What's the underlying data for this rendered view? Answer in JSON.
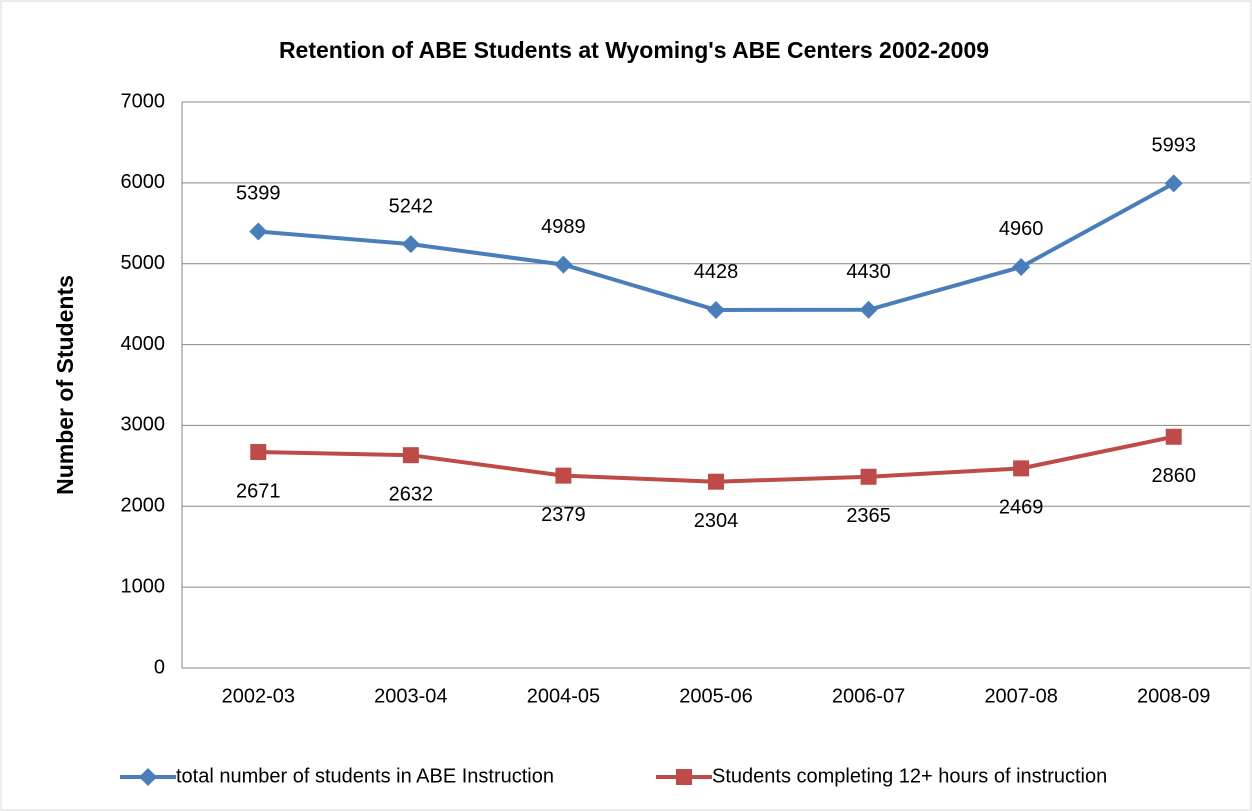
{
  "chart_data": {
    "type": "line",
    "title": "Retention of ABE Students at Wyoming's ABE Centers 2002-2009",
    "y_label": "Number  of Students",
    "categories": [
      "2002-03",
      "2003-04",
      "2004-05",
      "2005-06",
      "2006-07",
      "2007-08",
      "2008-09"
    ],
    "series": [
      {
        "name": "total number of students in ABE Instruction",
        "color": "#4a7ebb",
        "marker": "diamond",
        "label_position": "above",
        "values": [
          5399,
          5242,
          4989,
          4428,
          4430,
          4960,
          5993
        ]
      },
      {
        "name": "Students completing 12+ hours of instruction",
        "color": "#be4b48",
        "marker": "square",
        "label_position": "below",
        "values": [
          2671,
          2632,
          2379,
          2304,
          2365,
          2469,
          2860
        ]
      }
    ],
    "ylim": [
      0,
      7000
    ],
    "yticks": [
      0,
      1000,
      2000,
      3000,
      4000,
      5000,
      6000,
      7000
    ],
    "grid": true,
    "legend": "bottom"
  }
}
